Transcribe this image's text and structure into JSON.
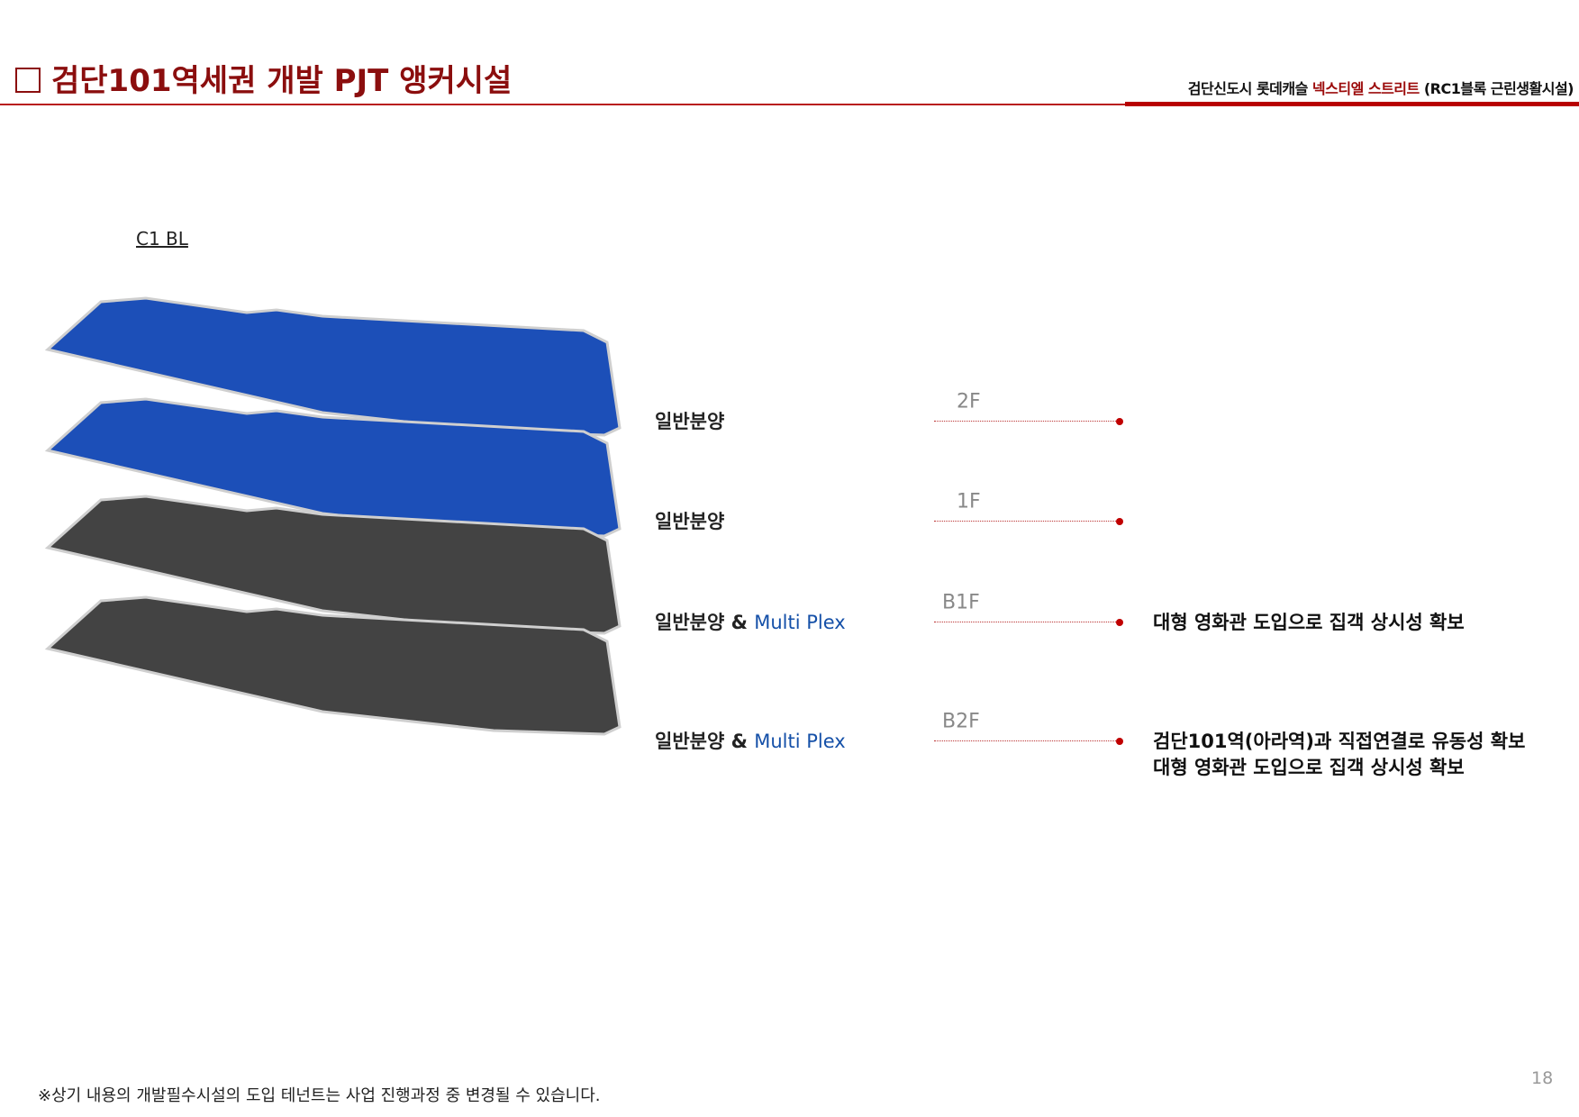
{
  "header": {
    "title": "검단101역세권 개발 PJT 앵커시설",
    "subtitle_pre": "검단신도시 롯데캐슬 ",
    "subtitle_highlight": "넥스티엘 스트리트",
    "subtitle_post": " (RC1블록 근린생활시설)"
  },
  "block_label": "C1 BL",
  "colors": {
    "accent": "#8b0e0e",
    "slab_upper": "#1c4fb8",
    "slab_lower": "#434343",
    "multiplex": "#1550a8"
  },
  "floors": [
    {
      "floor": "2F",
      "use": "일반분양",
      "use_extra": "",
      "desc": []
    },
    {
      "floor": "1F",
      "use": "일반분양",
      "use_extra": "",
      "desc": []
    },
    {
      "floor": "B1F",
      "use": "일반분양 & ",
      "use_extra": "Multi Plex",
      "desc": [
        "대형 영화관 도입으로 집객 상시성 확보"
      ]
    },
    {
      "floor": "B2F",
      "use": "일반분양 & ",
      "use_extra": "Multi Plex",
      "desc": [
        "검단101역(아라역)과 직접연결로 유동성 확보",
        "대형 영화관 도입으로 집객 상시성 확보"
      ]
    }
  ],
  "page_number": "18",
  "footnote": "※상기 내용의 개발필수시설의 도입 테넌트는 사업 진행과정 중 변경될 수 있습니다."
}
